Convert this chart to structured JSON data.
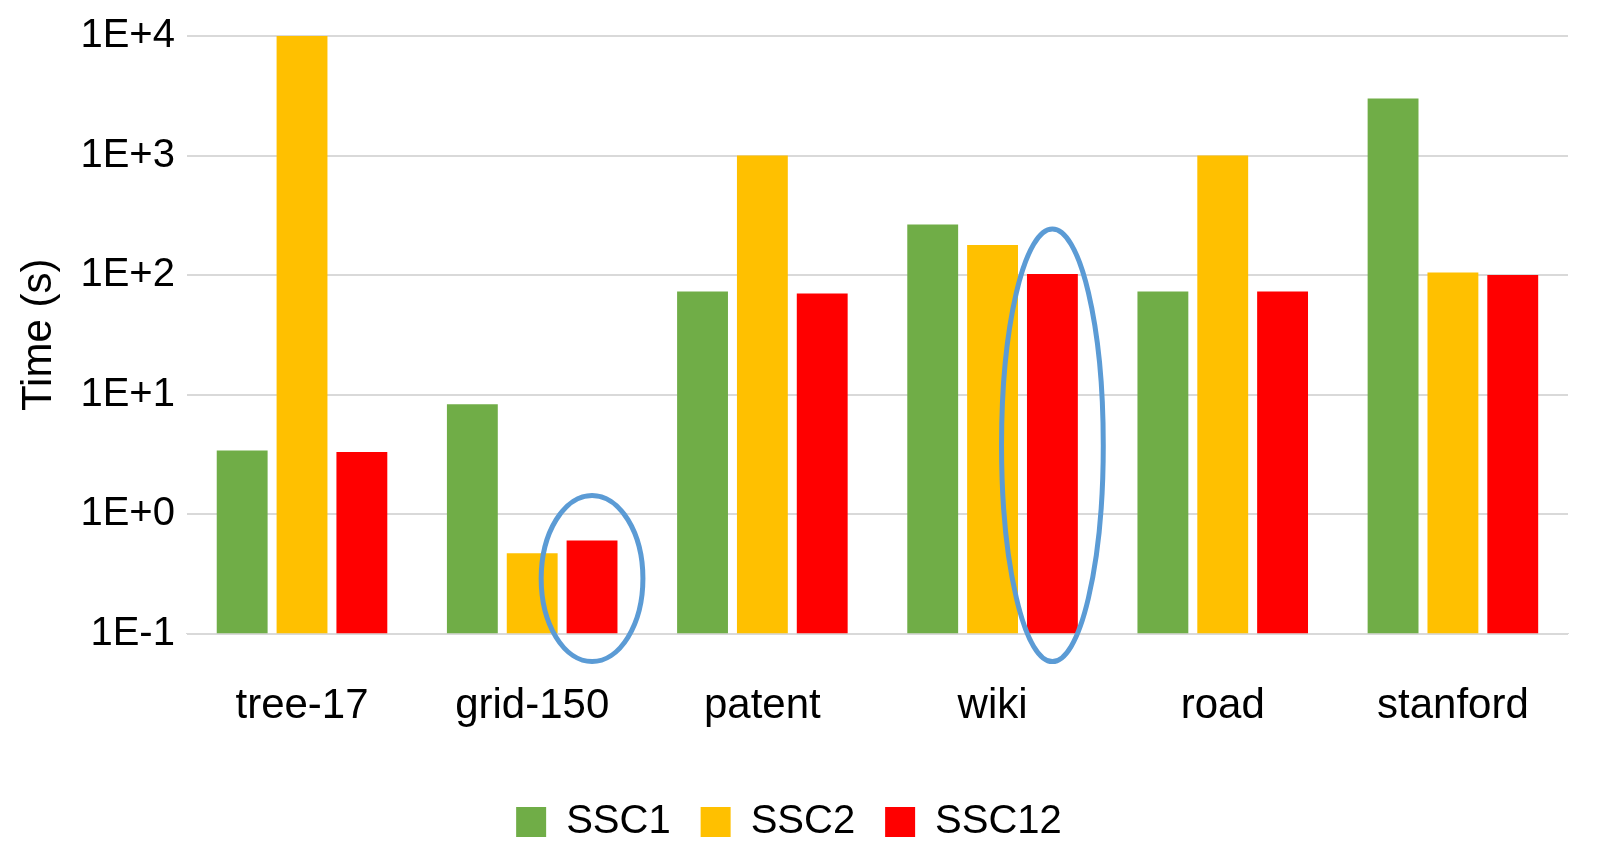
{
  "chart_data": {
    "type": "bar",
    "ylabel": "Time (s)",
    "log": true,
    "categories": [
      "tree-17",
      "grid-150",
      "patent",
      "wiki",
      "road",
      "stanford"
    ],
    "series": [
      {
        "name": "SSC1",
        "color": "#70ad47",
        "values": [
          3.4,
          8.3,
          73,
          265,
          73,
          3000
        ]
      },
      {
        "name": "SSC2",
        "color": "#ffc000",
        "values": [
          10000,
          0.47,
          1000,
          178,
          1000,
          105
        ]
      },
      {
        "name": "SSC12",
        "color": "#ff0000",
        "values": [
          3.3,
          0.6,
          70,
          102,
          73,
          100
        ]
      }
    ],
    "ylim": [
      0.1,
      10000
    ],
    "yticks": [
      {
        "value": 0.1,
        "label": "1E-1"
      },
      {
        "value": 1,
        "label": "1E+0"
      },
      {
        "value": 10,
        "label": "1E+1"
      },
      {
        "value": 100,
        "label": "1E+2"
      },
      {
        "value": 1000,
        "label": "1E+3"
      },
      {
        "value": 10000,
        "label": "1E+4"
      }
    ],
    "grid": "y",
    "legend": "bottom"
  }
}
